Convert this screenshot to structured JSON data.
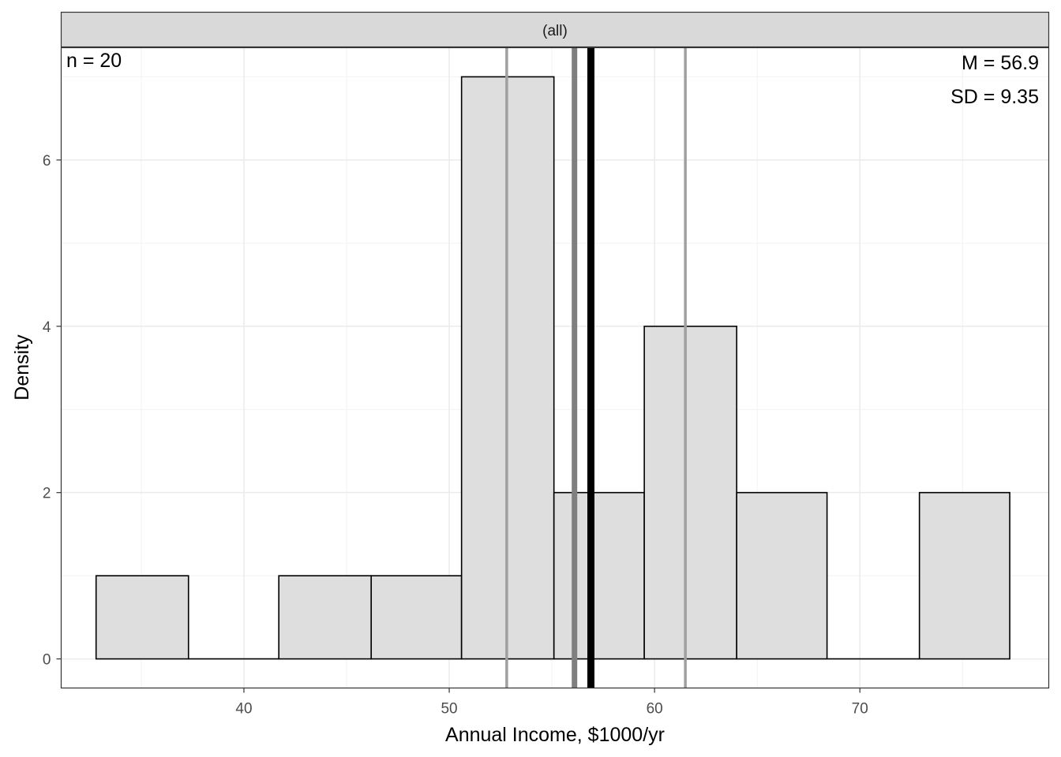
{
  "chart_data": {
    "type": "bar",
    "facet_label": "(all)",
    "xlabel": "Annual Income, $1000/yr",
    "ylabel": "Density",
    "xlim": [
      31.1,
      79.2
    ],
    "ylim": [
      -0.35,
      7.35
    ],
    "x_ticks": [
      40,
      50,
      60,
      70
    ],
    "y_ticks": [
      0,
      2,
      4,
      6
    ],
    "bins": [
      {
        "x0": 32.8,
        "x1": 37.3,
        "value": 1
      },
      {
        "x0": 37.3,
        "x1": 41.7,
        "value": 0
      },
      {
        "x0": 41.7,
        "x1": 46.2,
        "value": 1
      },
      {
        "x0": 46.2,
        "x1": 50.6,
        "value": 1
      },
      {
        "x0": 50.6,
        "x1": 55.1,
        "value": 7
      },
      {
        "x0": 55.1,
        "x1": 59.5,
        "value": 2
      },
      {
        "x0": 59.5,
        "x1": 64.0,
        "value": 4
      },
      {
        "x0": 64.0,
        "x1": 68.4,
        "value": 2
      },
      {
        "x0": 68.4,
        "x1": 72.9,
        "value": 0
      },
      {
        "x0": 72.9,
        "x1": 77.3,
        "value": 2
      }
    ],
    "vlines": [
      {
        "name": "mean",
        "x": 56.9,
        "color": "#000000"
      },
      {
        "name": "median",
        "x": 56.1,
        "color": "#7f7f7f"
      },
      {
        "name": "lower-quartile",
        "x": 52.8,
        "color": "#a0a0a0"
      },
      {
        "name": "upper-quartile",
        "x": 61.5,
        "color": "#a0a0a0"
      }
    ],
    "annotations": {
      "n": "n = 20",
      "mean": "M = 56.9",
      "sd": "SD = 9.35"
    },
    "grid": true,
    "bar_fill": "#dedede",
    "bar_stroke": "#000000"
  }
}
